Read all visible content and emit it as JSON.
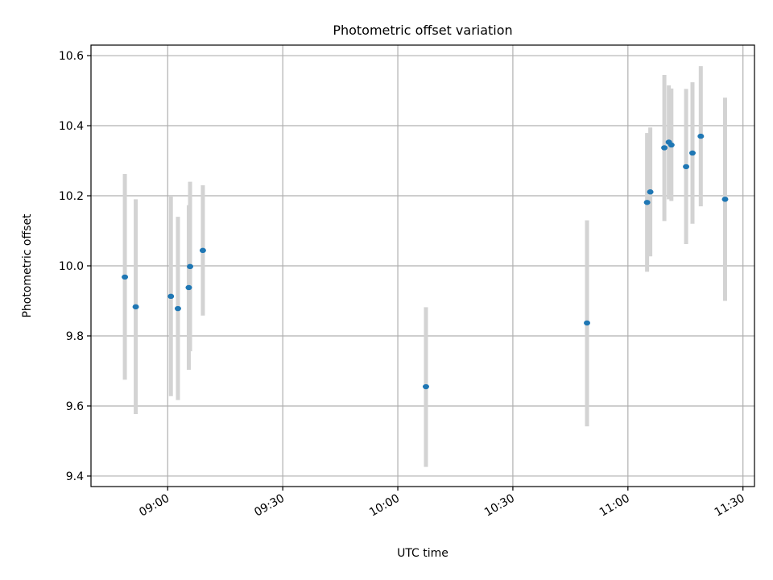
{
  "chart_data": {
    "type": "scatter",
    "title": "Photometric offset variation",
    "xlabel": "UTC time",
    "ylabel": "Photometric offset",
    "x_unit": "UTC time (HH:MM)",
    "xlim": [
      "08:40",
      "11:33"
    ],
    "ylim": [
      9.37,
      10.63
    ],
    "grid": true,
    "legend": "none",
    "x_ticks": [
      "09:00",
      "09:30",
      "10:00",
      "10:30",
      "11:00",
      "11:30"
    ],
    "y_ticks": [
      9.4,
      9.6,
      9.8,
      10.0,
      10.2,
      10.4,
      10.6
    ],
    "y_tick_labels": [
      "9.4",
      "9.6",
      "9.8",
      "10.0",
      "10.2",
      "10.4",
      "10.6"
    ],
    "series": [
      {
        "points": [
          {
            "time": "08:48:50",
            "y": 9.968,
            "ylow": 9.675,
            "yhigh": 10.262
          },
          {
            "time": "08:51:40",
            "y": 9.883,
            "ylow": 9.577,
            "yhigh": 10.19
          },
          {
            "time": "09:00:50",
            "y": 9.913,
            "ylow": 9.628,
            "yhigh": 10.2
          },
          {
            "time": "09:02:40",
            "y": 9.878,
            "ylow": 9.617,
            "yhigh": 10.14
          },
          {
            "time": "09:05:30",
            "y": 9.938,
            "ylow": 9.703,
            "yhigh": 10.173
          },
          {
            "time": "09:05:50",
            "y": 9.998,
            "ylow": 9.756,
            "yhigh": 10.24
          },
          {
            "time": "09:09:10",
            "y": 10.044,
            "ylow": 9.858,
            "yhigh": 10.23
          },
          {
            "time": "10:07:20",
            "y": 9.655,
            "ylow": 9.426,
            "yhigh": 9.882
          },
          {
            "time": "10:49:20",
            "y": 9.837,
            "ylow": 9.542,
            "yhigh": 10.13
          },
          {
            "time": "11:05:00",
            "y": 10.181,
            "ylow": 9.983,
            "yhigh": 10.379
          },
          {
            "time": "11:05:50",
            "y": 10.211,
            "ylow": 10.027,
            "yhigh": 10.395
          },
          {
            "time": "11:09:30",
            "y": 10.337,
            "ylow": 10.128,
            "yhigh": 10.545
          },
          {
            "time": "11:10:40",
            "y": 10.353,
            "ylow": 10.19,
            "yhigh": 10.515
          },
          {
            "time": "11:11:20",
            "y": 10.345,
            "ylow": 10.185,
            "yhigh": 10.506
          },
          {
            "time": "11:15:10",
            "y": 10.283,
            "ylow": 10.062,
            "yhigh": 10.505
          },
          {
            "time": "11:16:50",
            "y": 10.322,
            "ylow": 10.12,
            "yhigh": 10.524
          },
          {
            "time": "11:19:00",
            "y": 10.37,
            "ylow": 10.17,
            "yhigh": 10.57
          },
          {
            "time": "11:25:20",
            "y": 10.19,
            "ylow": 9.9,
            "yhigh": 10.48
          }
        ],
        "marker_color": "#1f77b4",
        "errorbar_color": "#d3d3d3"
      }
    ],
    "colors": {
      "grid": "#b0b0b0",
      "axes": "#000000",
      "marker": "#1f77b4",
      "errorbar": "#d3d3d3"
    }
  }
}
